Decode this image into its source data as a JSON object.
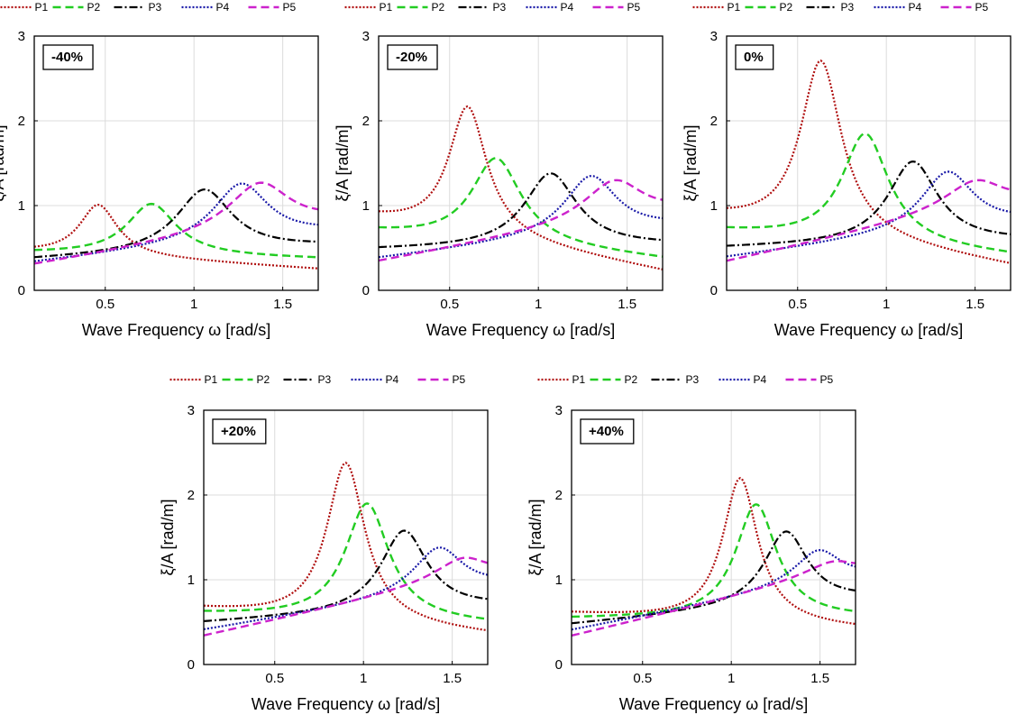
{
  "figure": {
    "x_tick_labels": [
      "0.5",
      "1",
      "1.5"
    ],
    "y_tick_labels": [
      "0",
      "1",
      "2",
      "3"
    ]
  },
  "colors": {
    "P1": "#b01010",
    "P2": "#22cc22",
    "P3": "#000000",
    "P4": "#1a1aa8",
    "P5": "#cc22cc",
    "grid": "#dcdcdc",
    "frame": "#000000"
  },
  "chart_data": [
    {
      "type": "line",
      "panel_label": "-40%",
      "xlabel": "Wave Frequency ω [rad/s]",
      "ylabel": "ξ/A [rad/m]",
      "xlim": [
        0.1,
        1.7
      ],
      "ylim": [
        0,
        3
      ],
      "grid": true,
      "legend": "top",
      "series": [
        {
          "name": "P1",
          "peak_x": 0.46,
          "peak_y": 1.01,
          "base": 0.45,
          "tail": 0.25,
          "width": 0.13
        },
        {
          "name": "P2",
          "peak_x": 0.76,
          "peak_y": 1.02,
          "base": 0.44,
          "tail": 0.37,
          "width": 0.17
        },
        {
          "name": "P3",
          "peak_x": 1.06,
          "peak_y": 1.19,
          "base": 0.36,
          "tail": 0.52,
          "width": 0.19
        },
        {
          "name": "P4",
          "peak_x": 1.27,
          "peak_y": 1.26,
          "base": 0.32,
          "tail": 0.68,
          "width": 0.19
        },
        {
          "name": "P5",
          "peak_x": 1.38,
          "peak_y": 1.27,
          "base": 0.29,
          "tail": 0.82,
          "width": 0.21
        }
      ]
    },
    {
      "type": "line",
      "panel_label": "-20%",
      "xlabel": "Wave Frequency ω [rad/s]",
      "ylabel": "ξ/A [rad/m]",
      "xlim": [
        0.1,
        1.7
      ],
      "ylim": [
        0,
        3
      ],
      "grid": true,
      "legend": "top",
      "series": [
        {
          "name": "P1",
          "peak_x": 0.6,
          "peak_y": 2.17,
          "base": 0.85,
          "tail": 0.22,
          "width": 0.13
        },
        {
          "name": "P2",
          "peak_x": 0.76,
          "peak_y": 1.56,
          "base": 0.69,
          "tail": 0.36,
          "width": 0.17
        },
        {
          "name": "P3",
          "peak_x": 1.07,
          "peak_y": 1.38,
          "base": 0.48,
          "tail": 0.53,
          "width": 0.18
        },
        {
          "name": "P4",
          "peak_x": 1.3,
          "peak_y": 1.35,
          "base": 0.37,
          "tail": 0.75,
          "width": 0.18
        },
        {
          "name": "P5",
          "peak_x": 1.44,
          "peak_y": 1.3,
          "base": 0.33,
          "tail": 0.93,
          "width": 0.2
        }
      ]
    },
    {
      "type": "line",
      "panel_label": "0%",
      "xlabel": "Wave Frequency ω [rad/s]",
      "ylabel": "ξ/A [rad/m]",
      "xlim": [
        0.1,
        1.7
      ],
      "ylim": [
        0,
        3
      ],
      "grid": true,
      "legend": "top",
      "series": [
        {
          "name": "P1",
          "peak_x": 0.63,
          "peak_y": 2.71,
          "base": 0.85,
          "tail": 0.28,
          "width": 0.14
        },
        {
          "name": "P2",
          "peak_x": 0.88,
          "peak_y": 1.85,
          "base": 0.7,
          "tail": 0.4,
          "width": 0.16
        },
        {
          "name": "P3",
          "peak_x": 1.15,
          "peak_y": 1.52,
          "base": 0.5,
          "tail": 0.58,
          "width": 0.17
        },
        {
          "name": "P4",
          "peak_x": 1.35,
          "peak_y": 1.4,
          "base": 0.38,
          "tail": 0.8,
          "width": 0.18
        },
        {
          "name": "P5",
          "peak_x": 1.52,
          "peak_y": 1.3,
          "base": 0.33,
          "tail": 1.05,
          "width": 0.2
        }
      ]
    },
    {
      "type": "line",
      "panel_label": "+20%",
      "xlabel": "Wave Frequency ω [rad/s]",
      "ylabel": "ξ/A [rad/m]",
      "xlim": [
        0.1,
        1.7
      ],
      "ylim": [
        0,
        3
      ],
      "grid": true,
      "legend": "top",
      "series": [
        {
          "name": "P1",
          "peak_x": 0.9,
          "peak_y": 2.38,
          "base": 0.65,
          "tail": 0.35,
          "width": 0.13
        },
        {
          "name": "P2",
          "peak_x": 1.02,
          "peak_y": 1.9,
          "base": 0.6,
          "tail": 0.47,
          "width": 0.15
        },
        {
          "name": "P3",
          "peak_x": 1.23,
          "peak_y": 1.58,
          "base": 0.49,
          "tail": 0.68,
          "width": 0.16
        },
        {
          "name": "P4",
          "peak_x": 1.43,
          "peak_y": 1.38,
          "base": 0.4,
          "tail": 0.93,
          "width": 0.17
        },
        {
          "name": "P5",
          "peak_x": 1.58,
          "peak_y": 1.26,
          "base": 0.33,
          "tail": 1.06,
          "width": 0.18
        }
      ]
    },
    {
      "type": "line",
      "panel_label": "+40%",
      "xlabel": "Wave Frequency ω [rad/s]",
      "ylabel": "ξ/A [rad/m]",
      "xlim": [
        0.1,
        1.7
      ],
      "ylim": [
        0,
        3
      ],
      "grid": true,
      "legend": "top",
      "series": [
        {
          "name": "P1",
          "peak_x": 1.05,
          "peak_y": 2.2,
          "base": 0.6,
          "tail": 0.42,
          "width": 0.12
        },
        {
          "name": "P2",
          "peak_x": 1.14,
          "peak_y": 1.89,
          "base": 0.54,
          "tail": 0.55,
          "width": 0.14
        },
        {
          "name": "P3",
          "peak_x": 1.31,
          "peak_y": 1.57,
          "base": 0.47,
          "tail": 0.77,
          "width": 0.15
        },
        {
          "name": "P4",
          "peak_x": 1.5,
          "peak_y": 1.35,
          "base": 0.4,
          "tail": 1.03,
          "width": 0.16
        },
        {
          "name": "P5",
          "peak_x": 1.6,
          "peak_y": 1.22,
          "base": 0.33,
          "tail": 1.12,
          "width": 0.17
        }
      ]
    }
  ]
}
